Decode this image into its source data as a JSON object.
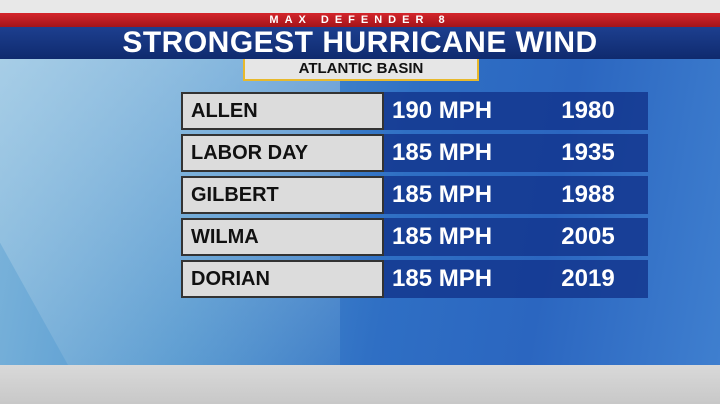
{
  "header": {
    "brand": "MAX DEFENDER 8",
    "title": "STRONGEST HURRICANE WIND",
    "subtitle": "ATLANTIC BASIN"
  },
  "table": {
    "rows": [
      [
        "ALLEN",
        "190 MPH",
        "1980"
      ],
      [
        "LABOR DAY",
        "185 MPH",
        "1935"
      ],
      [
        "GILBERT",
        "185 MPH",
        "1988"
      ],
      [
        "WILMA",
        "185 MPH",
        "2005"
      ],
      [
        "DORIAN",
        "185 MPH",
        "2019"
      ]
    ]
  }
}
